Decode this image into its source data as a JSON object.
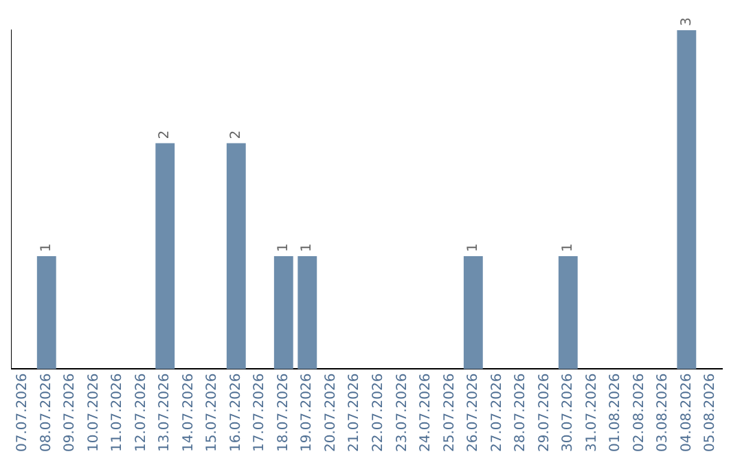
{
  "chart_data": {
    "type": "bar",
    "categories": [
      "07.07.2026",
      "08.07.2026",
      "09.07.2026",
      "10.07.2026",
      "11.07.2026",
      "12.07.2026",
      "13.07.2026",
      "14.07.2026",
      "15.07.2026",
      "16.07.2026",
      "17.07.2026",
      "18.07.2026",
      "19.07.2026",
      "20.07.2026",
      "21.07.2026",
      "22.07.2026",
      "23.07.2026",
      "24.07.2026",
      "25.07.2026",
      "26.07.2026",
      "27.07.2026",
      "28.07.2026",
      "29.07.2026",
      "30.07.2026",
      "31.07.2026",
      "01.08.2026",
      "02.08.2026",
      "03.08.2026",
      "04.08.2026",
      "05.08.2026"
    ],
    "values": [
      0,
      1,
      0,
      0,
      0,
      0,
      2,
      0,
      0,
      2,
      0,
      1,
      1,
      0,
      0,
      0,
      0,
      0,
      0,
      1,
      0,
      0,
      0,
      1,
      0,
      0,
      0,
      0,
      3,
      0
    ],
    "value_labels": [
      null,
      "1",
      null,
      null,
      null,
      null,
      "2",
      null,
      null,
      "2",
      null,
      "1",
      "1",
      null,
      null,
      null,
      null,
      null,
      null,
      "1",
      null,
      null,
      null,
      "1",
      null,
      null,
      null,
      null,
      "3",
      null
    ],
    "color": "#6d8dac",
    "grid": false,
    "legend": false,
    "tick_labels": "x"
  }
}
